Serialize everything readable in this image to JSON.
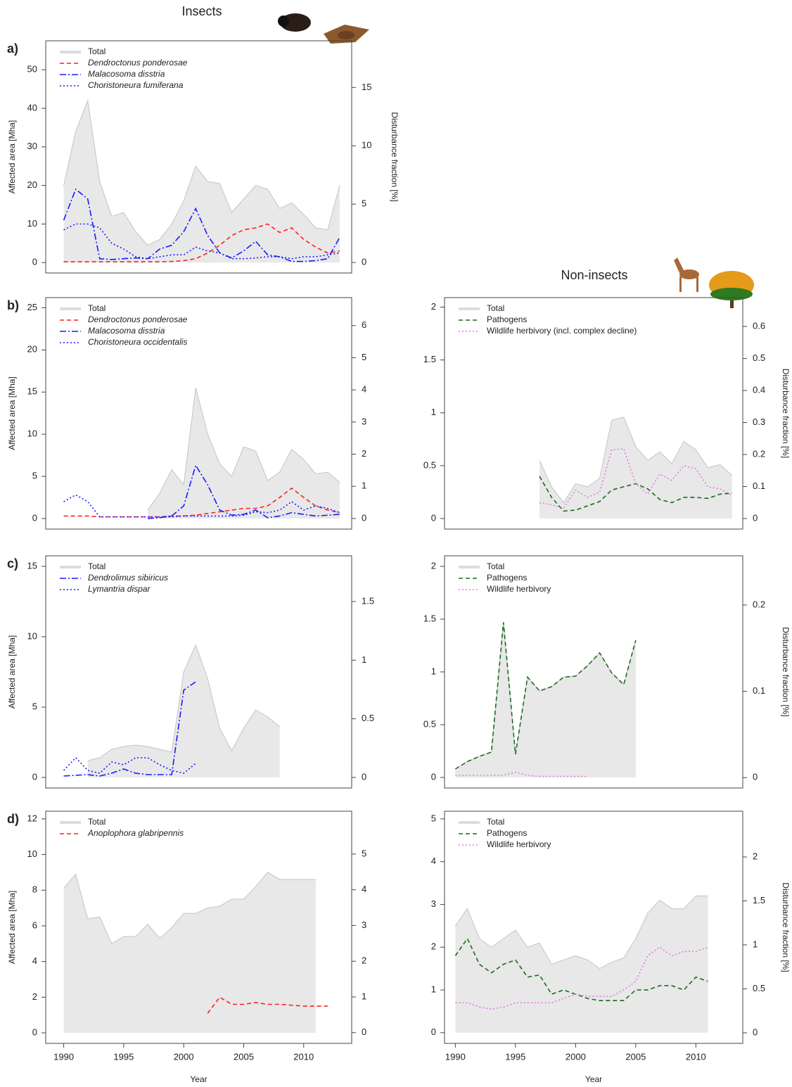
{
  "header": {
    "left": "Insects",
    "right": "Non-insects"
  },
  "chart_data": [
    {
      "type": "line",
      "panel_label": "a)",
      "ylabel": "Affected area [Mha]",
      "y2label": "Disturbance fraction [%]",
      "x": [
        1990,
        1991,
        1992,
        1993,
        1994,
        1995,
        1996,
        1997,
        1998,
        1999,
        2000,
        2001,
        2002,
        2003,
        2004,
        2005,
        2006,
        2007,
        2008,
        2009,
        2010,
        2011,
        2012,
        2013
      ],
      "xlim": [
        1988.5,
        2014
      ],
      "ylim": [
        -2.7,
        57.5
      ],
      "yticks": [
        0,
        10,
        20,
        30,
        40,
        50
      ],
      "y2lim": [
        -0.9,
        19
      ],
      "y2ticks": [
        0,
        5,
        10,
        15
      ],
      "series": [
        {
          "name": "Total",
          "style": "area",
          "color": "#e8e8e8",
          "values": [
            20,
            34,
            42,
            21,
            12,
            13,
            8,
            4.5,
            6,
            10,
            16,
            25,
            21,
            20.5,
            13,
            16.5,
            20,
            19,
            14,
            15.5,
            12.5,
            9,
            8.5,
            20
          ]
        },
        {
          "name": "Dendroctonus ponderosae",
          "style": "dashed",
          "color": "#ff2020",
          "values": [
            0.2,
            0.2,
            0.2,
            0.2,
            0.2,
            0.2,
            0.2,
            0.2,
            0.2,
            0.3,
            0.5,
            1,
            2.5,
            4.5,
            7,
            8.5,
            9,
            10,
            7.8,
            9,
            6,
            4,
            2.5,
            3
          ]
        },
        {
          "name": "Malacosoma disstria",
          "style": "dashdot",
          "color": "#1a1aff",
          "values": [
            11,
            19,
            16.5,
            1,
            0.8,
            1,
            1.2,
            1,
            3.5,
            4.5,
            8,
            14,
            7,
            2.5,
            1.2,
            3,
            5.5,
            2,
            1.5,
            0.3,
            0.3,
            0.5,
            1,
            6.5
          ]
        },
        {
          "name": "Choristoneura fumiferana",
          "style": "dotted",
          "color": "#1a1aff",
          "values": [
            8.5,
            10,
            10,
            9,
            5,
            3.5,
            1.5,
            1,
            1.5,
            2,
            2,
            4,
            3,
            2.5,
            1,
            1,
            1.2,
            1.5,
            1.5,
            1,
            1.5,
            1.5,
            2,
            2.5
          ]
        }
      ]
    },
    {
      "type": "line",
      "panel_label": "b)",
      "ylabel": "Affected area [Mha]",
      "x": [
        1990,
        1991,
        1992,
        1993,
        1994,
        1995,
        1996,
        1997,
        1998,
        1999,
        2000,
        2001,
        2002,
        2003,
        2004,
        2005,
        2006,
        2007,
        2008,
        2009,
        2010,
        2011,
        2012,
        2013
      ],
      "xlim": [
        1988.5,
        2014
      ],
      "ylim": [
        -1.25,
        26.2
      ],
      "yticks": [
        0,
        5,
        10,
        15,
        20,
        25
      ],
      "y2lim": [
        -0.33,
        6.87
      ],
      "y2ticks": [
        0,
        1,
        2,
        3,
        4,
        5,
        6
      ],
      "series": [
        {
          "name": "Total",
          "style": "area",
          "color": "#e8e8e8",
          "values": [
            null,
            null,
            null,
            null,
            null,
            null,
            null,
            1,
            3,
            5.8,
            4,
            15.5,
            10,
            6.5,
            5,
            8.5,
            8,
            4.5,
            5.5,
            8.2,
            7,
            5.3,
            5.5,
            4.3
          ]
        },
        {
          "name": "Dendroctonus ponderosae",
          "style": "dashed",
          "color": "#ff2020",
          "values": [
            0.3,
            0.3,
            0.3,
            0.2,
            0.2,
            0.2,
            0.2,
            0.2,
            0.2,
            0.3,
            0.3,
            0.4,
            0.6,
            0.8,
            1,
            1.2,
            1.2,
            1.5,
            2.5,
            3.6,
            2.5,
            1.5,
            1,
            0.7
          ]
        },
        {
          "name": "Malacosoma disstria",
          "style": "dashdot",
          "color": "#1a1aff",
          "values": [
            null,
            null,
            null,
            null,
            null,
            null,
            null,
            0,
            0.1,
            0.3,
            1.5,
            6.3,
            4,
            1,
            0.4,
            0.5,
            1,
            0.1,
            0.3,
            0.7,
            0.5,
            0.3,
            0.4,
            0.5
          ]
        },
        {
          "name": "Choristoneura occidentalis",
          "style": "dotted",
          "color": "#1a1aff",
          "values": [
            2,
            2.8,
            2,
            0.2,
            0.2,
            0.2,
            0.2,
            0.2,
            0.2,
            0.2,
            0.3,
            0.3,
            0.3,
            0.3,
            0.3,
            0.4,
            0.8,
            0.7,
            1,
            2,
            1,
            1.5,
            1.2,
            0.7
          ]
        }
      ]
    },
    {
      "type": "line",
      "panel_label": "c)",
      "ylabel": "Affected area [Mha]",
      "x": [
        1990,
        1991,
        1992,
        1993,
        1994,
        1995,
        1996,
        1997,
        1998,
        1999,
        2000,
        2001,
        2002,
        2003,
        2004,
        2005,
        2006,
        2007,
        2008
      ],
      "xlim": [
        1988.5,
        2014
      ],
      "ylim": [
        -0.75,
        15.75
      ],
      "yticks": [
        0,
        5,
        10,
        15
      ],
      "y2lim": [
        -0.09,
        1.89
      ],
      "y2ticks": [
        0,
        0.5,
        1,
        1.5
      ],
      "series": [
        {
          "name": "Total",
          "style": "area",
          "color": "#e8e8e8",
          "values": [
            null,
            null,
            1.2,
            1.4,
            2,
            2.2,
            2.3,
            2.2,
            2,
            1.8,
            7.5,
            9.4,
            7,
            3.5,
            1.9,
            3.5,
            4.8,
            4.3,
            3.6
          ]
        },
        {
          "name": "Dendrolimus sibiricus",
          "style": "dashdot",
          "color": "#1a1aff",
          "values": [
            0.1,
            0.15,
            0.2,
            0.1,
            0.3,
            0.6,
            0.3,
            0.2,
            0.2,
            0.2,
            6.2,
            6.8,
            null,
            null,
            null,
            null,
            null,
            null,
            null
          ]
        },
        {
          "name": "Lymantria dispar",
          "style": "dotted",
          "color": "#1a1aff",
          "values": [
            0.5,
            1.4,
            0.5,
            0.3,
            1.1,
            0.9,
            1.4,
            1.4,
            0.9,
            0.5,
            0.3,
            1,
            null,
            null,
            null,
            null,
            null,
            null,
            null
          ]
        }
      ]
    },
    {
      "type": "line",
      "panel_label": "d)",
      "ylabel": "Affected area [Mha]",
      "xlabel": "Year",
      "x": [
        1990,
        1991,
        1992,
        1993,
        1994,
        1995,
        1996,
        1997,
        1998,
        1999,
        2000,
        2001,
        2002,
        2003,
        2004,
        2005,
        2006,
        2007,
        2008,
        2009,
        2010,
        2011,
        2012
      ],
      "xlim": [
        1988.5,
        2014
      ],
      "xticks": [
        1990,
        1995,
        2000,
        2005,
        2010
      ],
      "ylim": [
        -0.59,
        12.43
      ],
      "yticks": [
        0,
        2,
        4,
        6,
        8,
        10,
        12
      ],
      "y2lim": [
        -0.3,
        6.2
      ],
      "y2ticks": [
        0,
        1,
        2,
        3,
        4,
        5
      ],
      "series": [
        {
          "name": "Total",
          "style": "area",
          "color": "#e8e8e8",
          "values": [
            8.1,
            8.9,
            6.4,
            6.5,
            5,
            5.4,
            5.4,
            6.1,
            5.3,
            5.9,
            6.7,
            6.7,
            7,
            7.1,
            7.5,
            7.5,
            8.2,
            9,
            8.6,
            8.6,
            8.6,
            8.6,
            null
          ]
        },
        {
          "name": "Anoplophora glabripennis",
          "style": "dashed",
          "color": "#ff2020",
          "values": [
            null,
            null,
            null,
            null,
            null,
            null,
            null,
            null,
            null,
            null,
            null,
            null,
            1.1,
            2,
            1.6,
            1.6,
            1.7,
            1.6,
            1.6,
            1.55,
            1.5,
            1.5,
            1.5
          ]
        }
      ]
    },
    {
      "type": "line",
      "y2label": "Disturbance fraction [%]",
      "x": [
        1997,
        1998,
        1999,
        2000,
        2001,
        2002,
        2003,
        2004,
        2005,
        2006,
        2007,
        2008,
        2009,
        2010,
        2011,
        2012,
        2013
      ],
      "xlim": [
        1989.1,
        2013.9
      ],
      "ylim": [
        -0.1,
        2.09
      ],
      "yticks": [
        0,
        0.5,
        1,
        1.5,
        2
      ],
      "y2lim": [
        -0.033,
        0.69
      ],
      "y2ticks": [
        0,
        0.1,
        0.2,
        0.3,
        0.4,
        0.5,
        0.6
      ],
      "series": [
        {
          "name": "Total",
          "style": "area",
          "color": "#e8e8e8",
          "values": [
            0.55,
            0.3,
            0.15,
            0.33,
            0.3,
            0.38,
            0.93,
            0.96,
            0.68,
            0.55,
            0.63,
            0.52,
            0.73,
            0.65,
            0.48,
            0.51,
            0.41
          ]
        },
        {
          "name": "Pathogens",
          "style": "dashed",
          "color": "#1a6b1a",
          "values": [
            0.4,
            0.2,
            0.07,
            0.08,
            0.12,
            0.16,
            0.27,
            0.3,
            0.33,
            0.28,
            0.18,
            0.15,
            0.2,
            0.2,
            0.19,
            0.23,
            0.24
          ]
        },
        {
          "name": "Wildlife herbivory (incl. complex decline)",
          "style": "dotted",
          "color": "#e07be0",
          "values": [
            0.15,
            0.13,
            0.1,
            0.27,
            0.2,
            0.25,
            0.65,
            0.66,
            0.33,
            0.23,
            0.42,
            0.36,
            0.5,
            0.47,
            0.3,
            0.28,
            0.22
          ]
        }
      ]
    },
    {
      "type": "line",
      "y2label": "Disturbance fraction [%]",
      "x": [
        1990,
        1991,
        1992,
        1993,
        1994,
        1995,
        1996,
        1997,
        1998,
        1999,
        2000,
        2001,
        2002,
        2003,
        2004,
        2005
      ],
      "xlim": [
        1989.1,
        2013.9
      ],
      "ylim": [
        -0.1,
        2.1
      ],
      "yticks": [
        0,
        0.5,
        1,
        1.5,
        2
      ],
      "y2lim": [
        -0.012,
        0.257
      ],
      "y2ticks": [
        0,
        0.1,
        0.2
      ],
      "series": [
        {
          "name": "Total",
          "style": "area",
          "color": "#e8e8e8",
          "values": [
            0.08,
            0.15,
            0.2,
            0.24,
            1.47,
            0.22,
            0.95,
            0.82,
            0.86,
            0.95,
            0.96,
            1.06,
            1.18,
            0.99,
            0.88,
            1.3
          ]
        },
        {
          "name": "Pathogens",
          "style": "dashed",
          "color": "#1a6b1a",
          "values": [
            0.08,
            0.15,
            0.2,
            0.24,
            1.47,
            0.22,
            0.95,
            0.82,
            0.86,
            0.95,
            0.96,
            1.06,
            1.18,
            0.99,
            0.88,
            1.3
          ]
        },
        {
          "name": "Wildlife herbivory",
          "style": "dotted",
          "color": "#e07be0",
          "values": [
            0.02,
            0.02,
            0.02,
            0.02,
            0.02,
            0.05,
            0.02,
            0.01,
            0.01,
            0.01,
            0.01,
            0.01,
            null,
            null,
            null,
            null
          ]
        }
      ]
    },
    {
      "type": "line",
      "y2label": "Disturbance fraction [%]",
      "xlabel": "Year",
      "x": [
        1990,
        1991,
        1992,
        1993,
        1994,
        1995,
        1996,
        1997,
        1998,
        1999,
        2000,
        2001,
        2002,
        2003,
        2004,
        2005,
        2006,
        2007,
        2008,
        2009,
        2010,
        2011
      ],
      "xlim": [
        1989.1,
        2013.9
      ],
      "xticks": [
        1990,
        1995,
        2000,
        2005,
        2010
      ],
      "ylim": [
        -0.25,
        5.18
      ],
      "yticks": [
        0,
        1,
        2,
        3,
        4,
        5
      ],
      "y2lim": [
        -0.12,
        2.52
      ],
      "y2ticks": [
        0,
        0.5,
        1,
        1.5,
        2
      ],
      "series": [
        {
          "name": "Total",
          "style": "area",
          "color": "#e8e8e8",
          "values": [
            2.5,
            2.9,
            2.2,
            2,
            2.2,
            2.4,
            2,
            2.1,
            1.6,
            1.7,
            1.8,
            1.7,
            1.5,
            1.65,
            1.75,
            2.2,
            2.8,
            3.1,
            2.9,
            2.9,
            3.2,
            3.2
          ]
        },
        {
          "name": "Pathogens",
          "style": "dashed",
          "color": "#1a6b1a",
          "values": [
            1.8,
            2.2,
            1.6,
            1.4,
            1.6,
            1.7,
            1.3,
            1.35,
            0.9,
            1,
            0.9,
            0.8,
            0.75,
            0.75,
            0.75,
            1,
            1,
            1.1,
            1.1,
            1,
            1.3,
            1.2
          ]
        },
        {
          "name": "Wildlife herbivory",
          "style": "dotted",
          "color": "#e07be0",
          "values": [
            0.7,
            0.7,
            0.6,
            0.55,
            0.6,
            0.7,
            0.7,
            0.7,
            0.7,
            0.8,
            0.9,
            0.85,
            0.85,
            0.85,
            1,
            1.2,
            1.8,
            2,
            1.8,
            1.9,
            1.9,
            2
          ]
        }
      ]
    }
  ]
}
